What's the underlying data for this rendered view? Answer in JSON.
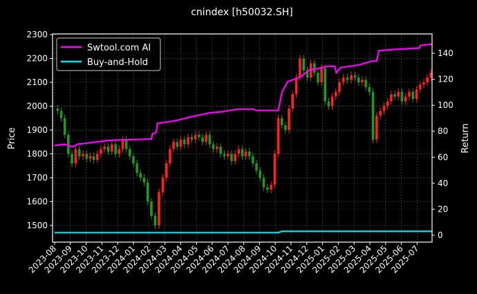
{
  "chart_data": {
    "type": "candlestick+line",
    "title": "cnindex [h50032.SH]",
    "ylabel_left": "Price",
    "ylabel_right": "Return",
    "ylim_left": [
      1430,
      2303
    ],
    "ylim_right": [
      -5.3,
      154.9
    ],
    "yticks_left": [
      1500,
      1600,
      1700,
      1800,
      1900,
      2000,
      2100,
      2200,
      2300
    ],
    "yticks_right": [
      0,
      20,
      40,
      60,
      80,
      100,
      120,
      140
    ],
    "xticks": [
      "2023-08",
      "2023-09",
      "2023-10",
      "2023-11",
      "2023-12",
      "2024-01",
      "2024-02",
      "2024-03",
      "2024-04",
      "2024-05",
      "2024-06",
      "2024-07",
      "2024-08",
      "2024-09",
      "2024-10",
      "2024-11",
      "2024-12",
      "2025-01",
      "2025-02",
      "2025-03",
      "2025-04",
      "2025-05",
      "2025-06",
      "2025-07"
    ],
    "grid": true,
    "legend_placement": "top-left",
    "colors": {
      "up": "#ff2020",
      "down": "#1f9a1f",
      "strategy": "#ff00ff",
      "buy_hold": "#00e5ee",
      "grid": "#555555"
    },
    "price_close": [
      [
        "2023-08-07",
        1980
      ],
      [
        "2023-08-14",
        1950
      ],
      [
        "2023-08-21",
        1880
      ],
      [
        "2023-08-28",
        1800
      ],
      [
        "2023-09-04",
        1760
      ],
      [
        "2023-09-11",
        1820
      ],
      [
        "2023-09-18",
        1790
      ],
      [
        "2023-09-25",
        1800
      ],
      [
        "2023-10-02",
        1780
      ],
      [
        "2023-10-09",
        1790
      ],
      [
        "2023-10-16",
        1775
      ],
      [
        "2023-10-23",
        1800
      ],
      [
        "2023-10-30",
        1820
      ],
      [
        "2023-11-06",
        1830
      ],
      [
        "2023-11-13",
        1810
      ],
      [
        "2023-11-20",
        1840
      ],
      [
        "2023-11-27",
        1800
      ],
      [
        "2023-12-04",
        1820
      ],
      [
        "2023-12-11",
        1860
      ],
      [
        "2023-12-18",
        1820
      ],
      [
        "2023-12-25",
        1790
      ],
      [
        "2024-01-01",
        1760
      ],
      [
        "2024-01-08",
        1720
      ],
      [
        "2024-01-15",
        1700
      ],
      [
        "2024-01-22",
        1680
      ],
      [
        "2024-01-29",
        1600
      ],
      [
        "2024-02-05",
        1540
      ],
      [
        "2024-02-12",
        1500
      ],
      [
        "2024-02-19",
        1640
      ],
      [
        "2024-02-26",
        1700
      ],
      [
        "2024-03-04",
        1760
      ],
      [
        "2024-03-11",
        1820
      ],
      [
        "2024-03-18",
        1850
      ],
      [
        "2024-03-25",
        1830
      ],
      [
        "2024-04-01",
        1860
      ],
      [
        "2024-04-08",
        1840
      ],
      [
        "2024-04-15",
        1870
      ],
      [
        "2024-04-22",
        1860
      ],
      [
        "2024-04-29",
        1880
      ],
      [
        "2024-05-06",
        1870
      ],
      [
        "2024-05-13",
        1850
      ],
      [
        "2024-05-20",
        1880
      ],
      [
        "2024-05-27",
        1840
      ],
      [
        "2024-06-03",
        1820
      ],
      [
        "2024-06-10",
        1830
      ],
      [
        "2024-06-17",
        1800
      ],
      [
        "2024-06-24",
        1790
      ],
      [
        "2024-07-01",
        1800
      ],
      [
        "2024-07-08",
        1770
      ],
      [
        "2024-07-15",
        1800
      ],
      [
        "2024-07-22",
        1820
      ],
      [
        "2024-07-29",
        1790
      ],
      [
        "2024-08-05",
        1810
      ],
      [
        "2024-08-12",
        1790
      ],
      [
        "2024-08-19",
        1760
      ],
      [
        "2024-08-26",
        1730
      ],
      [
        "2024-09-02",
        1700
      ],
      [
        "2024-09-09",
        1660
      ],
      [
        "2024-09-16",
        1650
      ],
      [
        "2024-09-23",
        1670
      ],
      [
        "2024-09-30",
        1800
      ],
      [
        "2024-10-07",
        1950
      ],
      [
        "2024-10-14",
        1920
      ],
      [
        "2024-10-21",
        1900
      ],
      [
        "2024-10-28",
        1990
      ],
      [
        "2024-11-04",
        2050
      ],
      [
        "2024-11-11",
        2120
      ],
      [
        "2024-11-18",
        2200
      ],
      [
        "2024-11-25",
        2150
      ],
      [
        "2024-12-02",
        2120
      ],
      [
        "2024-12-09",
        2180
      ],
      [
        "2024-12-16",
        2140
      ],
      [
        "2024-12-23",
        2100
      ],
      [
        "2024-12-30",
        2160
      ],
      [
        "2025-01-06",
        2020
      ],
      [
        "2025-01-13",
        2000
      ],
      [
        "2025-01-20",
        2040
      ],
      [
        "2025-01-27",
        2060
      ],
      [
        "2025-02-03",
        2100
      ],
      [
        "2025-02-10",
        2120
      ],
      [
        "2025-02-17",
        2110
      ],
      [
        "2025-02-24",
        2130
      ],
      [
        "2025-03-03",
        2120
      ],
      [
        "2025-03-10",
        2100
      ],
      [
        "2025-03-17",
        2110
      ],
      [
        "2025-03-24",
        2080
      ],
      [
        "2025-03-31",
        2060
      ],
      [
        "2025-04-07",
        1860
      ],
      [
        "2025-04-14",
        1960
      ],
      [
        "2025-04-21",
        1980
      ],
      [
        "2025-04-28",
        2000
      ],
      [
        "2025-05-05",
        2020
      ],
      [
        "2025-05-12",
        2050
      ],
      [
        "2025-05-19",
        2040
      ],
      [
        "2025-05-26",
        2060
      ],
      [
        "2025-06-02",
        2020
      ],
      [
        "2025-06-09",
        2040
      ],
      [
        "2025-06-16",
        2060
      ],
      [
        "2025-06-23",
        2030
      ],
      [
        "2025-06-30",
        2070
      ],
      [
        "2025-07-07",
        2090
      ],
      [
        "2025-07-14",
        2100
      ],
      [
        "2025-07-21",
        2120
      ],
      [
        "2025-07-28",
        2140
      ]
    ],
    "series": [
      {
        "name": "Swtool.com AI",
        "axis": "right",
        "points": [
          [
            "2023-08-01",
            69
          ],
          [
            "2023-08-20",
            70
          ],
          [
            "2023-09-05",
            68
          ],
          [
            "2023-09-15",
            70
          ],
          [
            "2023-11-15",
            73
          ],
          [
            "2024-02-05",
            74
          ],
          [
            "2024-02-07",
            78
          ],
          [
            "2024-02-14",
            79
          ],
          [
            "2024-02-16",
            86
          ],
          [
            "2024-03-20",
            88
          ],
          [
            "2024-04-20",
            91
          ],
          [
            "2024-05-25",
            94
          ],
          [
            "2024-06-20",
            95
          ],
          [
            "2024-07-20",
            97
          ],
          [
            "2024-08-20",
            97
          ],
          [
            "2024-08-25",
            96
          ],
          [
            "2024-10-07",
            96
          ],
          [
            "2024-10-14",
            110
          ],
          [
            "2024-10-25",
            118
          ],
          [
            "2024-11-20",
            122
          ],
          [
            "2024-12-05",
            127
          ],
          [
            "2024-12-20",
            128
          ],
          [
            "2025-01-10",
            130
          ],
          [
            "2025-01-25",
            130
          ],
          [
            "2025-01-28",
            125
          ],
          [
            "2025-02-05",
            129
          ],
          [
            "2025-03-10",
            131
          ],
          [
            "2025-04-05",
            134
          ],
          [
            "2025-04-14",
            134
          ],
          [
            "2025-04-18",
            142
          ],
          [
            "2025-05-20",
            143
          ],
          [
            "2025-07-05",
            144
          ],
          [
            "2025-07-08",
            146
          ],
          [
            "2025-07-31",
            147
          ]
        ]
      },
      {
        "name": "Buy-and-Hold",
        "axis": "right",
        "points": [
          [
            "2023-08-01",
            2
          ],
          [
            "2024-10-07",
            2
          ],
          [
            "2024-10-14",
            3
          ],
          [
            "2025-07-31",
            3
          ]
        ]
      }
    ]
  }
}
